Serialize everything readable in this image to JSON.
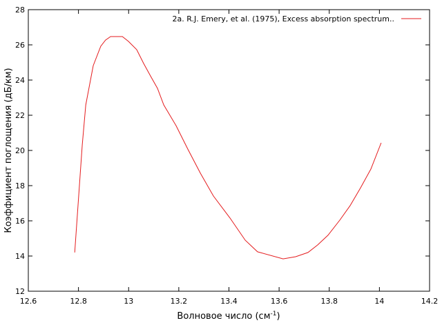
{
  "chart_data": {
    "type": "line",
    "xlabel": {
      "text": "Волновое число (см",
      "sup": "-1",
      "suffix": ")"
    },
    "ylabel": "Коэффициент поглощения (дБ/км)",
    "xlim": [
      12.6,
      14.2
    ],
    "xticks": [
      12.6,
      12.8,
      13,
      13.2,
      13.4,
      13.6,
      13.8,
      14,
      14.2
    ],
    "ylim": [
      12,
      28
    ],
    "yticks": [
      12,
      14,
      16,
      18,
      20,
      22,
      24,
      26,
      28
    ],
    "legend": "top-right",
    "series": [
      {
        "name": "2a. R.J. Emery, et al. (1975), Excess absorption spectrum..",
        "color": "#e41a1c",
        "x": [
          12.785,
          12.815,
          12.829,
          12.859,
          12.889,
          12.908,
          12.928,
          12.975,
          12.999,
          13.032,
          13.06,
          13.087,
          13.115,
          13.14,
          13.189,
          13.236,
          13.286,
          13.338,
          13.404,
          13.465,
          13.514,
          13.616,
          13.666,
          13.715,
          13.754,
          13.795,
          13.842,
          13.883,
          13.925,
          13.966,
          14.007
        ],
        "values": [
          14.2,
          20.31,
          22.59,
          24.82,
          25.92,
          26.27,
          26.47,
          26.47,
          26.2,
          25.73,
          24.94,
          24.24,
          23.53,
          22.59,
          21.41,
          20.08,
          18.71,
          17.41,
          16.16,
          14.9,
          14.24,
          13.84,
          13.96,
          14.2,
          14.63,
          15.18,
          16.04,
          16.86,
          17.88,
          18.94,
          20.43
        ]
      }
    ]
  }
}
